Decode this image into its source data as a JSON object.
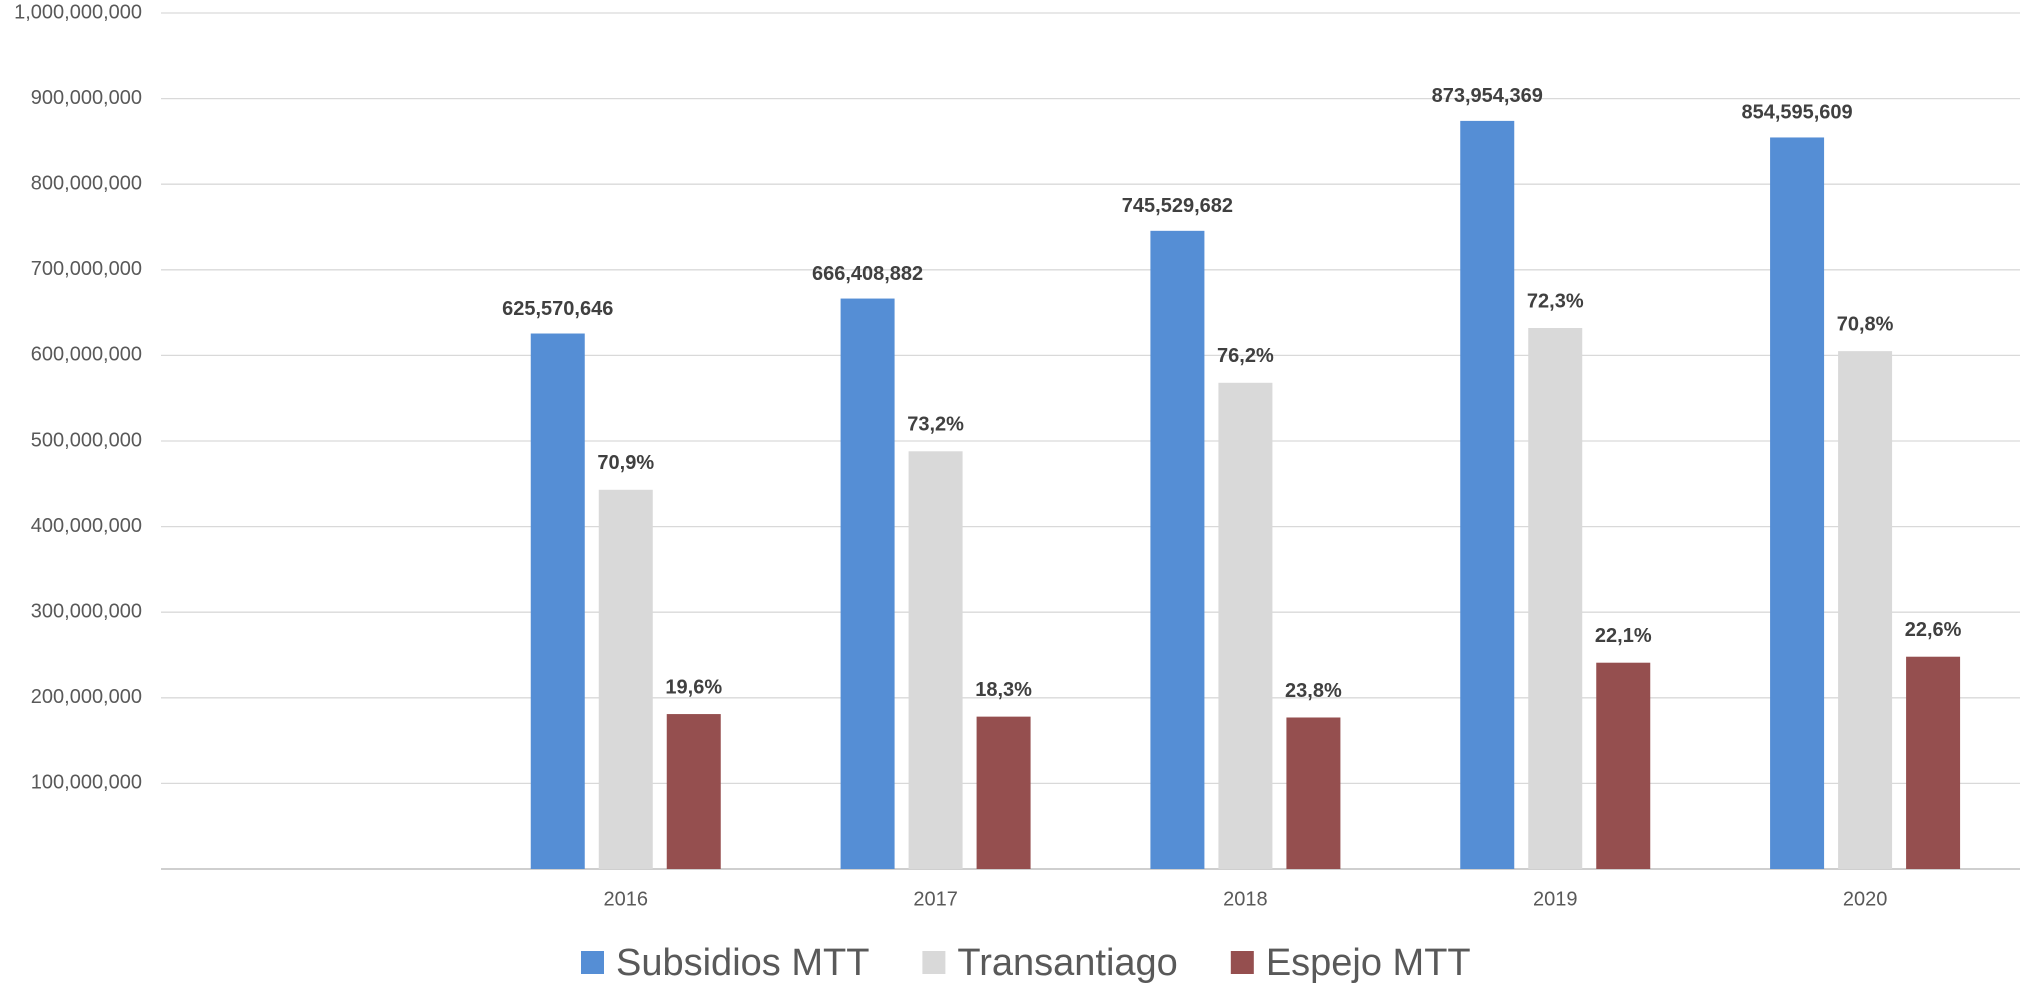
{
  "chart_data": {
    "type": "bar",
    "categories": [
      null,
      "2016",
      "2017",
      "2018",
      "2019",
      "2020"
    ],
    "series": [
      {
        "name": "Subsidios MTT",
        "color": "#558ed5",
        "values": [
          null,
          625570646,
          666408882,
          745529682,
          873954369,
          854595609
        ],
        "value_labels": [
          null,
          "625,570,646",
          "666,408,882",
          "745,529,682",
          "873,954,369",
          "854,595,609"
        ]
      },
      {
        "name": "Transantiago",
        "color": "#d9d9d9",
        "values": [
          null,
          443000000,
          488000000,
          568000000,
          632000000,
          605000000
        ],
        "percent_values": [
          null,
          70.9,
          73.2,
          76.2,
          72.3,
          70.8
        ],
        "percent_labels": [
          null,
          "70,9%",
          "73,2%",
          "76,2%",
          "72,3%",
          "70,8%"
        ]
      },
      {
        "name": "Espejo MTT",
        "color": "#954f4f",
        "values": [
          null,
          181000000,
          178000000,
          177000000,
          241000000,
          248000000
        ],
        "percent_values": [
          null,
          19.6,
          18.3,
          23.8,
          22.1,
          22.6
        ],
        "percent_labels": [
          null,
          "19,6%",
          "18,3%",
          "23,8%",
          "22,1%",
          "22,6%"
        ]
      }
    ],
    "ylim": [
      0,
      1000000000
    ],
    "yticks": [
      {
        "value": 100000000,
        "label": "100,000,000"
      },
      {
        "value": 200000000,
        "label": "200,000,000"
      },
      {
        "value": 300000000,
        "label": "300,000,000"
      },
      {
        "value": 400000000,
        "label": "400,000,000"
      },
      {
        "value": 500000000,
        "label": "500,000,000"
      },
      {
        "value": 600000000,
        "label": "600,000,000"
      },
      {
        "value": 700000000,
        "label": "700,000,000"
      },
      {
        "value": 800000000,
        "label": "800,000,000"
      },
      {
        "value": 900000000,
        "label": "900,000,000"
      },
      {
        "value": 1000000000,
        "label": "1,000,000,000"
      }
    ],
    "grid": true,
    "legend": "bottom"
  }
}
